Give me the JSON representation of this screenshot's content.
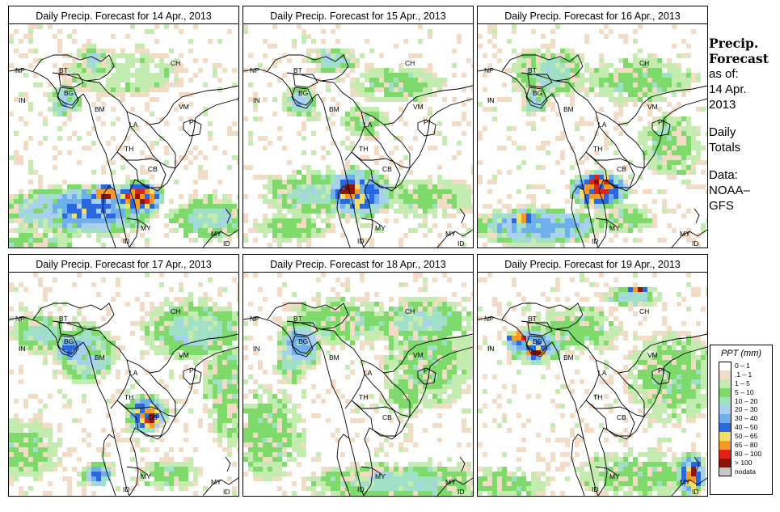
{
  "panels": [
    {
      "title": "Daily Precip. Forecast for  14 Apr., 2013"
    },
    {
      "title": "Daily Precip. Forecast for  15 Apr., 2013"
    },
    {
      "title": "Daily Precip. Forecast for  16 Apr., 2013"
    },
    {
      "title": "Daily Precip. Forecast for  17 Apr., 2013"
    },
    {
      "title": "Daily Precip. Forecast for  18 Apr., 2013"
    },
    {
      "title": "Daily Precip. Forecast for  19 Apr., 2013"
    }
  ],
  "map_labels": [
    "NP",
    "BT",
    "BG",
    "IN",
    "BM",
    "CH",
    "VM",
    "LA",
    "TH",
    "CB",
    "MY",
    "MY",
    "ID",
    "ID",
    "PI"
  ],
  "sidebar": {
    "heading_1": "Precip.",
    "heading_2": "Forecast",
    "line_1": "as of:",
    "line_2": "14 Apr.",
    "line_3": "2013",
    "line_4": "Daily",
    "line_5": "Totals",
    "line_6": "Data:",
    "line_7": "NOAA–",
    "line_8": "GFS"
  },
  "legend": {
    "title": "PPT (mm)",
    "classes": [
      {
        "label": "0 – 1",
        "color": "#ffffff"
      },
      {
        "label": ".1 – 1",
        "color": "#f3dcc6"
      },
      {
        "label": "1 – 5",
        "color": "#c4ecb0"
      },
      {
        "label": "5 – 10",
        "color": "#7fda6c"
      },
      {
        "label": "10 – 20",
        "color": "#9fe0c6"
      },
      {
        "label": "20 – 30",
        "color": "#a9d0f0"
      },
      {
        "label": "30 – 40",
        "color": "#6fb0ec"
      },
      {
        "label": "40 – 50",
        "color": "#2a68e0"
      },
      {
        "label": "50 – 65",
        "color": "#f4de6a"
      },
      {
        "label": "65 – 80",
        "color": "#f59a26"
      },
      {
        "label": "80 – 100",
        "color": "#de2414"
      },
      {
        "label": "> 100",
        "color": "#8e1408"
      },
      {
        "label": "nodata",
        "color": "#c8c8c8"
      }
    ]
  }
}
